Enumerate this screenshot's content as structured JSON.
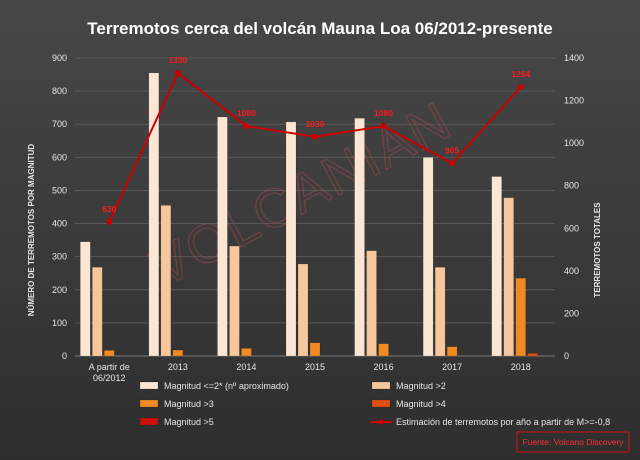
{
  "chart_data": {
    "type": "bar",
    "title": "Terremotos cerca del volcán Mauna Loa 06/2012-presente",
    "ylabel": "NÚMERO DE TERREMOTOS POR MAGNITUD",
    "y2label": "TERREMOTOS TOTALES",
    "categories": [
      "A partir de 06/2012",
      "2013",
      "2014",
      "2015",
      "2016",
      "2017",
      "2018"
    ],
    "ylim": [
      0,
      900
    ],
    "y2lim": [
      0,
      1400
    ],
    "yticks": [
      "0",
      "100",
      "200",
      "300",
      "400",
      "500",
      "600",
      "700",
      "800",
      "900"
    ],
    "y2ticks": [
      "0",
      "200",
      "400",
      "600",
      "800",
      "1000",
      "1200",
      "1400"
    ],
    "grid": true,
    "legend_position": "bottom",
    "series": [
      {
        "name": "Magnitud <=2* (nº aproximado)",
        "color": "#fbe6d4",
        "values": [
          345,
          855,
          722,
          707,
          718,
          600,
          542
        ]
      },
      {
        "name": "Magnitud >2",
        "color": "#f6c79c",
        "values": [
          268,
          455,
          332,
          278,
          318,
          268,
          478
        ]
      },
      {
        "name": "Magnitud >3",
        "color": "#f08a22",
        "values": [
          17,
          18,
          23,
          40,
          37,
          28,
          235
        ]
      },
      {
        "name": "Magnitud >4",
        "color": "#e04e10",
        "values": [
          0,
          0,
          0,
          0,
          0,
          0,
          8
        ]
      },
      {
        "name": "Magnitud >5",
        "color": "#cc1010",
        "values": [
          0,
          0,
          0,
          0,
          0,
          0,
          0
        ]
      }
    ],
    "line_series": {
      "name": "Estimación de terremotos por año a partir de M>=-0,8",
      "color": "#cc0000",
      "axis": "right",
      "values": [
        630,
        1330,
        1080,
        1030,
        1080,
        905,
        1264
      ],
      "labels": [
        "630",
        "1330",
        "1080",
        "1030",
        "1080",
        "905",
        "1264"
      ]
    },
    "watermark": "VOLCANIAN",
    "source": "Fuente: Volcano Discovery"
  }
}
